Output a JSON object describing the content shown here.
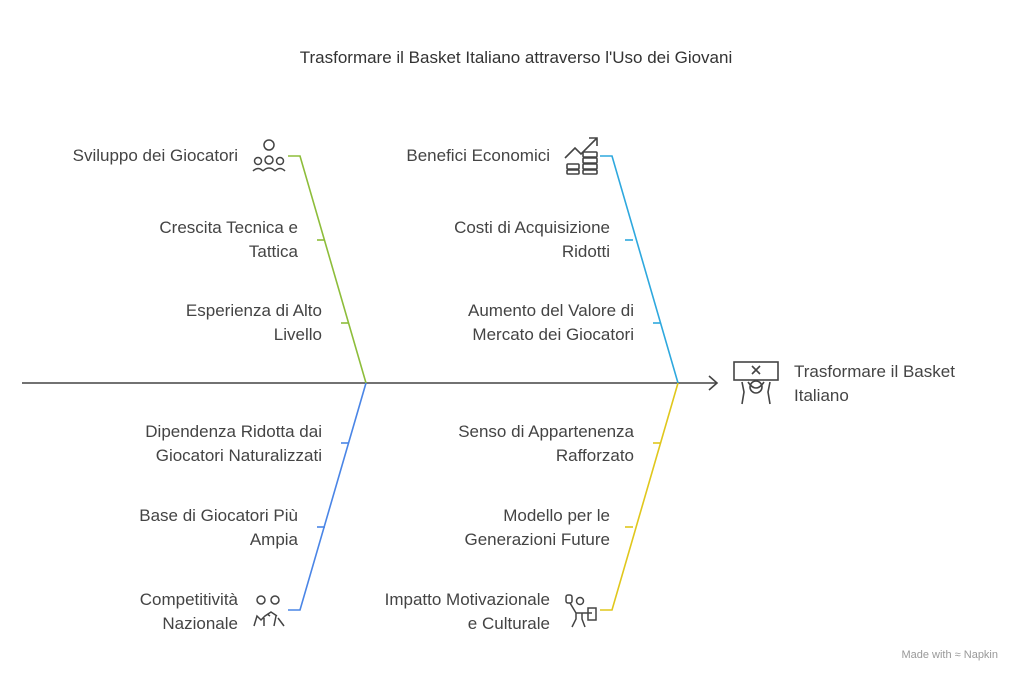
{
  "title": "Trasformare il Basket Italiano attraverso l'Uso dei Giovani",
  "effect": {
    "label": "Trasformare il Basket\nItaliano",
    "icon": "basketball-hoop-player-icon"
  },
  "colors": {
    "top_left": "#8dbd3a",
    "top_right": "#2ea8de",
    "bottom_left": "#4a85e6",
    "bottom_right": "#e0c71c",
    "spine": "#444444"
  },
  "categories": [
    {
      "label": "Sviluppo dei Giocatori",
      "icon": "players-team-icon",
      "causes": [
        "Crescita Tecnica e\nTattica",
        "Esperienza di Alto\nLivello"
      ]
    },
    {
      "label": "Benefici Economici",
      "icon": "growth-coins-icon",
      "causes": [
        "Costi di Acquisizione\nRidotti",
        "Aumento del Valore di\nMercato dei Giocatori"
      ]
    },
    {
      "label": "Competitività\nNazionale",
      "icon": "players-high-five-icon",
      "causes": [
        "Dipendenza Ridotta dai\nGiocatori Naturalizzati",
        "Base di Giocatori Più\nAmpia"
      ]
    },
    {
      "label": "Impatto Motivazionale\ne Culturale",
      "icon": "person-cheering-icon",
      "causes": [
        "Senso di Appartenenza\nRafforzato",
        "Modello per le\nGenerazioni Future"
      ]
    }
  ],
  "watermark": "Made with ≈ Napkin"
}
